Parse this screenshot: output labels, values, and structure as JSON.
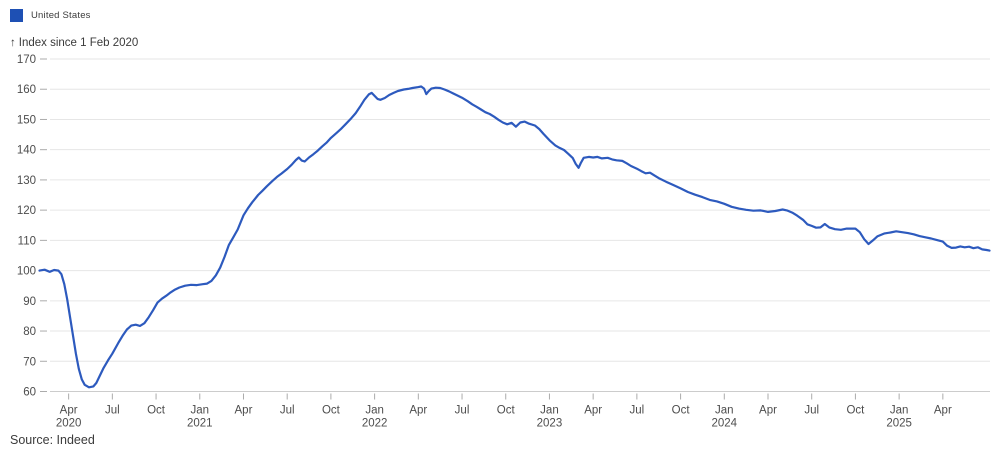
{
  "legend": {
    "label": "United States",
    "swatch_color": "#1e50b4"
  },
  "axis_title": {
    "arrow": "↑",
    "text": "Index since 1 Feb 2020"
  },
  "source": "Source: Indeed",
  "colors": {
    "line": "#2d5abe",
    "grid": "#e6e6e6",
    "axis_line": "#cccccc",
    "tick_mark": "#ababab",
    "tick_text": "#4d4d4d"
  },
  "chart_data": {
    "type": "line",
    "title": "",
    "ylabel": "Index since 1 Feb 2020",
    "xlabel": "",
    "x_unit": "months_since_2020-02-01",
    "xlim": [
      0,
      65.2
    ],
    "ylim": [
      60,
      170
    ],
    "grid": true,
    "legend_position": "top-left",
    "y_ticks": [
      170,
      160,
      150,
      140,
      130,
      120,
      110,
      100,
      90,
      80,
      70,
      60
    ],
    "x_ticks": [
      {
        "t": 2,
        "label": "Apr",
        "year": "2020"
      },
      {
        "t": 5,
        "label": "Jul"
      },
      {
        "t": 8,
        "label": "Oct"
      },
      {
        "t": 11,
        "label": "Jan",
        "year": "2021"
      },
      {
        "t": 14,
        "label": "Apr"
      },
      {
        "t": 17,
        "label": "Jul"
      },
      {
        "t": 20,
        "label": "Oct"
      },
      {
        "t": 23,
        "label": "Jan",
        "year": "2022"
      },
      {
        "t": 26,
        "label": "Apr"
      },
      {
        "t": 29,
        "label": "Jul"
      },
      {
        "t": 32,
        "label": "Oct"
      },
      {
        "t": 35,
        "label": "Jan",
        "year": "2023"
      },
      {
        "t": 38,
        "label": "Apr"
      },
      {
        "t": 41,
        "label": "Jul"
      },
      {
        "t": 44,
        "label": "Oct"
      },
      {
        "t": 47,
        "label": "Jan",
        "year": "2024"
      },
      {
        "t": 50,
        "label": "Apr"
      },
      {
        "t": 53,
        "label": "Jul"
      },
      {
        "t": 56,
        "label": "Oct"
      },
      {
        "t": 59,
        "label": "Jan",
        "year": "2025"
      },
      {
        "t": 62,
        "label": "Apr"
      }
    ],
    "series": [
      {
        "name": "United States",
        "color": "#2d5abe",
        "points": [
          [
            0,
            100
          ],
          [
            0.35,
            100.3
          ],
          [
            0.7,
            99.6
          ],
          [
            1,
            100.2
          ],
          [
            1.3,
            100
          ],
          [
            1.5,
            98.8
          ],
          [
            1.7,
            95.5
          ],
          [
            1.9,
            90.5
          ],
          [
            2.1,
            84.5
          ],
          [
            2.3,
            78.5
          ],
          [
            2.5,
            72.5
          ],
          [
            2.7,
            67.5
          ],
          [
            2.9,
            64
          ],
          [
            3.1,
            62.2
          ],
          [
            3.4,
            61.4
          ],
          [
            3.7,
            61.7
          ],
          [
            3.9,
            62.8
          ],
          [
            4.1,
            64.8
          ],
          [
            4.4,
            67.8
          ],
          [
            4.7,
            70.3
          ],
          [
            5,
            72.5
          ],
          [
            5.4,
            76
          ],
          [
            5.7,
            78.4
          ],
          [
            6,
            80.5
          ],
          [
            6.3,
            81.8
          ],
          [
            6.6,
            82.1
          ],
          [
            6.9,
            81.7
          ],
          [
            7.2,
            82.6
          ],
          [
            7.5,
            84.6
          ],
          [
            7.8,
            86.9
          ],
          [
            8.1,
            89.4
          ],
          [
            8.4,
            90.7
          ],
          [
            8.7,
            91.7
          ],
          [
            9,
            92.8
          ],
          [
            9.3,
            93.7
          ],
          [
            9.6,
            94.4
          ],
          [
            10,
            95
          ],
          [
            10.4,
            95.3
          ],
          [
            10.8,
            95.2
          ],
          [
            11.2,
            95.5
          ],
          [
            11.5,
            95.7
          ],
          [
            11.8,
            96.6
          ],
          [
            12.1,
            98.4
          ],
          [
            12.4,
            101
          ],
          [
            12.7,
            104.5
          ],
          [
            13,
            108.5
          ],
          [
            13.3,
            111
          ],
          [
            13.6,
            113.6
          ],
          [
            14,
            118.3
          ],
          [
            14.3,
            120.6
          ],
          [
            14.6,
            122.6
          ],
          [
            15,
            125
          ],
          [
            15.3,
            126.4
          ],
          [
            15.6,
            127.9
          ],
          [
            16,
            129.7
          ],
          [
            16.3,
            131
          ],
          [
            16.6,
            132.1
          ],
          [
            17,
            133.6
          ],
          [
            17.3,
            135
          ],
          [
            17.6,
            136.6
          ],
          [
            17.8,
            137.4
          ],
          [
            18,
            136.4
          ],
          [
            18.2,
            136.1
          ],
          [
            18.5,
            137.4
          ],
          [
            18.8,
            138.5
          ],
          [
            19.1,
            139.7
          ],
          [
            19.4,
            141.1
          ],
          [
            19.7,
            142.3
          ],
          [
            20,
            143.9
          ],
          [
            20.4,
            145.6
          ],
          [
            20.7,
            146.9
          ],
          [
            21,
            148.4
          ],
          [
            21.4,
            150.4
          ],
          [
            21.7,
            152.1
          ],
          [
            22,
            154.2
          ],
          [
            22.3,
            156.5
          ],
          [
            22.6,
            158.3
          ],
          [
            22.8,
            158.8
          ],
          [
            23,
            157.8
          ],
          [
            23.2,
            156.8
          ],
          [
            23.4,
            156.5
          ],
          [
            23.7,
            157.1
          ],
          [
            24,
            158.1
          ],
          [
            24.3,
            158.8
          ],
          [
            24.6,
            159.4
          ],
          [
            25,
            159.9
          ],
          [
            25.3,
            160.1
          ],
          [
            25.6,
            160.4
          ],
          [
            26,
            160.7
          ],
          [
            26.2,
            160.9
          ],
          [
            26.4,
            160.2
          ],
          [
            26.55,
            158.4
          ],
          [
            26.7,
            159.3
          ],
          [
            26.9,
            160.2
          ],
          [
            27.2,
            160.5
          ],
          [
            27.5,
            160.4
          ],
          [
            27.8,
            159.9
          ],
          [
            28.1,
            159.3
          ],
          [
            28.4,
            158.6
          ],
          [
            28.7,
            157.9
          ],
          [
            29,
            157.2
          ],
          [
            29.4,
            156
          ],
          [
            29.7,
            155
          ],
          [
            30,
            154.2
          ],
          [
            30.3,
            153.3
          ],
          [
            30.6,
            152.4
          ],
          [
            30.9,
            151.8
          ],
          [
            31.2,
            150.9
          ],
          [
            31.5,
            149.9
          ],
          [
            31.8,
            149
          ],
          [
            32.1,
            148.4
          ],
          [
            32.4,
            148.9
          ],
          [
            32.7,
            147.6
          ],
          [
            33,
            149
          ],
          [
            33.3,
            149.3
          ],
          [
            33.6,
            148.6
          ],
          [
            34,
            148
          ],
          [
            34.3,
            146.8
          ],
          [
            34.6,
            145.2
          ],
          [
            35,
            143.1
          ],
          [
            35.4,
            141.4
          ],
          [
            35.7,
            140.6
          ],
          [
            36,
            139.9
          ],
          [
            36.3,
            138.6
          ],
          [
            36.6,
            137.2
          ],
          [
            36.8,
            135.3
          ],
          [
            37,
            134
          ],
          [
            37.15,
            135.6
          ],
          [
            37.35,
            137.3
          ],
          [
            37.7,
            137.6
          ],
          [
            38,
            137.4
          ],
          [
            38.3,
            137.6
          ],
          [
            38.6,
            137.1
          ],
          [
            39,
            137.3
          ],
          [
            39.3,
            136.8
          ],
          [
            39.6,
            136.5
          ],
          [
            40,
            136.3
          ],
          [
            40.3,
            135.5
          ],
          [
            40.6,
            134.6
          ],
          [
            41,
            133.7
          ],
          [
            41.3,
            132.9
          ],
          [
            41.6,
            132.2
          ],
          [
            41.9,
            132.4
          ],
          [
            42.2,
            131.5
          ],
          [
            42.5,
            130.6
          ],
          [
            43,
            129.4
          ],
          [
            43.5,
            128.3
          ],
          [
            44,
            127.2
          ],
          [
            44.5,
            126
          ],
          [
            45,
            125.1
          ],
          [
            45.5,
            124.3
          ],
          [
            46,
            123.4
          ],
          [
            46.5,
            122.9
          ],
          [
            47,
            122.1
          ],
          [
            47.5,
            121.1
          ],
          [
            48,
            120.5
          ],
          [
            48.5,
            120.1
          ],
          [
            49,
            119.8
          ],
          [
            49.5,
            119.9
          ],
          [
            50,
            119.4
          ],
          [
            50.5,
            119.7
          ],
          [
            51,
            120.2
          ],
          [
            51.3,
            119.9
          ],
          [
            51.7,
            119.1
          ],
          [
            52,
            118.2
          ],
          [
            52.4,
            116.8
          ],
          [
            52.7,
            115.3
          ],
          [
            53,
            114.8
          ],
          [
            53.3,
            114.2
          ],
          [
            53.6,
            114.3
          ],
          [
            53.9,
            115.4
          ],
          [
            54.2,
            114.3
          ],
          [
            54.6,
            113.7
          ],
          [
            55,
            113.5
          ],
          [
            55.4,
            113.9
          ],
          [
            56,
            113.9
          ],
          [
            56.3,
            112.7
          ],
          [
            56.6,
            110.4
          ],
          [
            56.9,
            108.8
          ],
          [
            57.2,
            110
          ],
          [
            57.5,
            111.3
          ],
          [
            58,
            112.3
          ],
          [
            58.4,
            112.6
          ],
          [
            58.8,
            113
          ],
          [
            59.2,
            112.7
          ],
          [
            59.6,
            112.4
          ],
          [
            60,
            112
          ],
          [
            60.4,
            111.4
          ],
          [
            60.8,
            111
          ],
          [
            61.2,
            110.6
          ],
          [
            61.6,
            110.1
          ],
          [
            62,
            109.6
          ],
          [
            62.3,
            108.2
          ],
          [
            62.6,
            107.5
          ],
          [
            62.9,
            107.6
          ],
          [
            63.2,
            108
          ],
          [
            63.5,
            107.7
          ],
          [
            63.8,
            107.9
          ],
          [
            64.1,
            107.4
          ],
          [
            64.4,
            107.7
          ],
          [
            64.7,
            107
          ],
          [
            65,
            106.8
          ],
          [
            65.2,
            106.6
          ]
        ]
      }
    ]
  }
}
